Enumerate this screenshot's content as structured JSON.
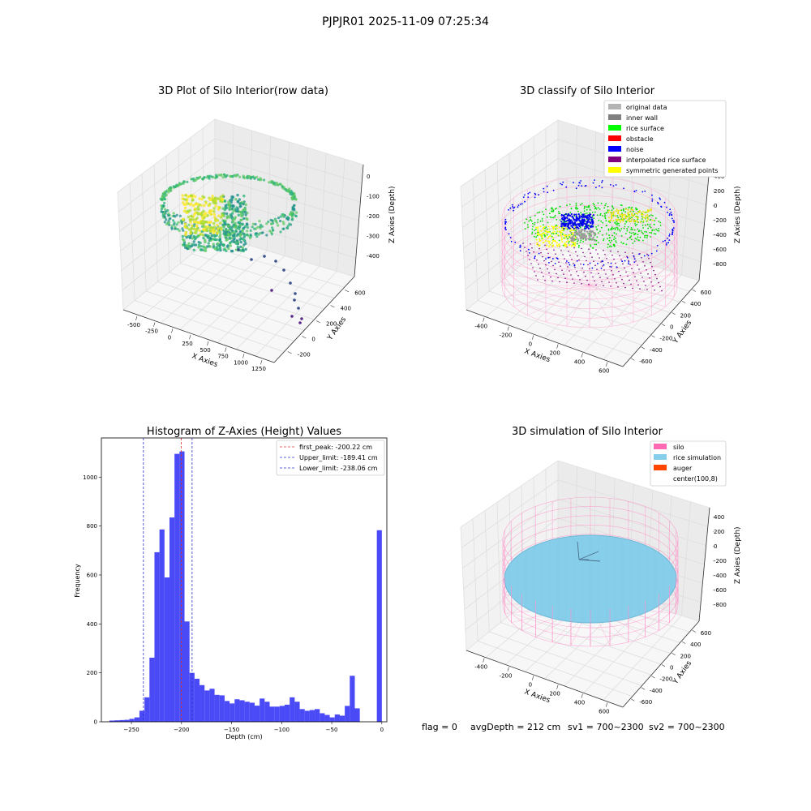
{
  "suptitle": "PJPJR01 2025-11-09 07:25:34",
  "footer": {
    "flag": "flag = 0",
    "avg_depth": "avgDepth = 212 cm",
    "sv1": "sv1 = 700~2300",
    "sv2": "sv2 = 700~2300"
  },
  "chart_data": [
    {
      "type": "scatter",
      "title": "3D Plot of Silo Interior(row data)",
      "xlabel": "X Axies",
      "ylabel": "Y Axies",
      "zlabel": "Z Axies (Depth)",
      "xticks": [
        "-500",
        "-250",
        "0",
        "250",
        "500",
        "750",
        "1000",
        "1250"
      ],
      "yticks": [
        "-200",
        "0",
        "200",
        "400",
        "600"
      ],
      "zticks": [
        "-400",
        "-300",
        "-200",
        "-100",
        "0"
      ],
      "colormap": "viridis"
    },
    {
      "type": "scatter",
      "title": "3D classify of Silo Interior",
      "xlabel": "X Axies",
      "ylabel": "Y Axies",
      "zlabel": "Z Axies (Depth)",
      "xticks": [
        "-400",
        "-200",
        "0",
        "200",
        "400",
        "600"
      ],
      "yticks": [
        "-600",
        "-400",
        "-200",
        "0",
        "200",
        "400",
        "600"
      ],
      "zticks": [
        "-800",
        "-600",
        "-400",
        "-200",
        "0",
        "200",
        "400"
      ],
      "legend": [
        {
          "label": "original data",
          "color": "#b4b4b4"
        },
        {
          "label": "inner wall",
          "color": "#808080"
        },
        {
          "label": "rice surface",
          "color": "#00ff00"
        },
        {
          "label": "obstacle",
          "color": "#ff0000"
        },
        {
          "label": "noise",
          "color": "#0000ff"
        },
        {
          "label": "interpolated rice surface",
          "color": "#800080"
        },
        {
          "label": "symmetric generated points",
          "color": "#ffff00"
        }
      ],
      "legend_position": "upper-right"
    },
    {
      "type": "bar",
      "title": "Histogram of Z-Axies (Height) Values",
      "xlabel": "Depth (cm)",
      "ylabel": "Frequency",
      "xlim": [
        -280,
        5
      ],
      "ylim": [
        0,
        1160
      ],
      "xticks": [
        -250,
        -200,
        -150,
        -100,
        -50,
        0
      ],
      "yticks": [
        0,
        200,
        400,
        600,
        800,
        1000
      ],
      "bin_width": 5,
      "bins": [
        {
          "x": -272,
          "v": 5
        },
        {
          "x": -267,
          "v": 6
        },
        {
          "x": -262,
          "v": 7
        },
        {
          "x": -257,
          "v": 8
        },
        {
          "x": -252,
          "v": 12
        },
        {
          "x": -247,
          "v": 18
        },
        {
          "x": -242,
          "v": 45
        },
        {
          "x": -237,
          "v": 100
        },
        {
          "x": -232,
          "v": 262
        },
        {
          "x": -227,
          "v": 693
        },
        {
          "x": -222,
          "v": 786
        },
        {
          "x": -217,
          "v": 590
        },
        {
          "x": -212,
          "v": 835
        },
        {
          "x": -207,
          "v": 1095
        },
        {
          "x": -202,
          "v": 1105
        },
        {
          "x": -197,
          "v": 410
        },
        {
          "x": -192,
          "v": 200
        },
        {
          "x": -187,
          "v": 176
        },
        {
          "x": -182,
          "v": 150
        },
        {
          "x": -177,
          "v": 128
        },
        {
          "x": -172,
          "v": 135
        },
        {
          "x": -167,
          "v": 110
        },
        {
          "x": -162,
          "v": 108
        },
        {
          "x": -157,
          "v": 85
        },
        {
          "x": -152,
          "v": 75
        },
        {
          "x": -147,
          "v": 92
        },
        {
          "x": -142,
          "v": 88
        },
        {
          "x": -137,
          "v": 82
        },
        {
          "x": -132,
          "v": 78
        },
        {
          "x": -127,
          "v": 66
        },
        {
          "x": -122,
          "v": 95
        },
        {
          "x": -117,
          "v": 82
        },
        {
          "x": -112,
          "v": 62
        },
        {
          "x": -107,
          "v": 62
        },
        {
          "x": -102,
          "v": 65
        },
        {
          "x": -97,
          "v": 70
        },
        {
          "x": -92,
          "v": 100
        },
        {
          "x": -87,
          "v": 82
        },
        {
          "x": -82,
          "v": 52
        },
        {
          "x": -77,
          "v": 45
        },
        {
          "x": -72,
          "v": 48
        },
        {
          "x": -67,
          "v": 52
        },
        {
          "x": -62,
          "v": 35
        },
        {
          "x": -57,
          "v": 28
        },
        {
          "x": -52,
          "v": 18
        },
        {
          "x": -47,
          "v": 30
        },
        {
          "x": -42,
          "v": 25
        },
        {
          "x": -37,
          "v": 65
        },
        {
          "x": -32,
          "v": 188
        },
        {
          "x": -27,
          "v": 55
        },
        {
          "x": -22,
          "v": 783
        }
      ],
      "bar_color": "#4a4af6",
      "vlines": [
        {
          "label": "first_peak: -200.22 cm",
          "x": -200.22,
          "color": "#e03030"
        },
        {
          "label": "Upper_limit: -189.41 cm",
          "x": -189.41,
          "color": "#3030d0"
        },
        {
          "label": "Lower_limit: -238.06 cm",
          "x": -238.06,
          "color": "#3030d0"
        }
      ],
      "legend_position": "upper-right"
    },
    {
      "type": "scatter",
      "title": "3D simulation of Silo Interior",
      "xlabel": "X Axies",
      "ylabel": "Y Axies",
      "zlabel": "Z Axies (Depth)",
      "xticks": [
        "-400",
        "-200",
        "0",
        "200",
        "400",
        "600"
      ],
      "yticks": [
        "-600",
        "-400",
        "-200",
        "0",
        "200",
        "400",
        "600"
      ],
      "zticks": [
        "-800",
        "-600",
        "-400",
        "-200",
        "0",
        "200",
        "400"
      ],
      "legend": [
        {
          "label": "silo",
          "color": "#ff69b4"
        },
        {
          "label": "rice simulation",
          "color": "#87ceeb"
        },
        {
          "label": "auger",
          "color": "#ff4500"
        },
        {
          "label": "center(100,8)",
          "color": ""
        }
      ],
      "legend_position": "upper-right"
    }
  ]
}
